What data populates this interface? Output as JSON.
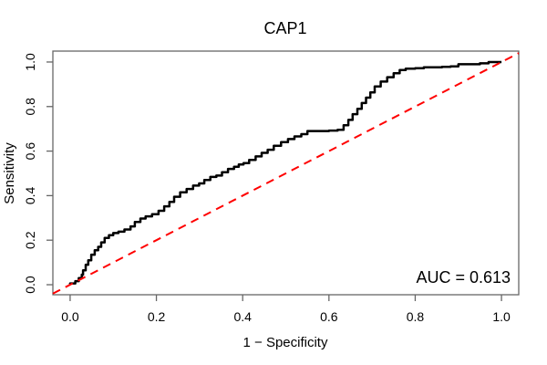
{
  "title": "CAP1",
  "annotation": {
    "auc_label": "AUC = 0.613"
  },
  "colors": {
    "curve": "#000000",
    "diagonal": "#ff0000",
    "box": "#666666",
    "text": "#000000"
  },
  "chart_data": {
    "type": "line",
    "subtype": "roc-step-curve",
    "title": "CAP1",
    "xlabel": "1 − Specificity",
    "ylabel": "Sensitivity",
    "xlim": [
      -0.04,
      1.04
    ],
    "ylim": [
      -0.045,
      1.049
    ],
    "grid": false,
    "legend": "none",
    "x_ticks": {
      "values": [
        0.0,
        0.2,
        0.4,
        0.6,
        0.8,
        1.0
      ],
      "labels": [
        "0.0",
        "0.2",
        "0.4",
        "0.6",
        "0.8",
        "1.0"
      ]
    },
    "y_ticks": {
      "values": [
        0.0,
        0.2,
        0.4,
        0.6,
        0.8,
        1.0
      ],
      "labels": [
        "0.0",
        "0.2",
        "0.4",
        "0.6",
        "0.8",
        "1.0"
      ]
    },
    "auc": 0.613,
    "series": [
      {
        "name": "ROC curve",
        "style": "step",
        "color": "#000000",
        "width": 2.5,
        "points": [
          [
            0.0,
            0.0
          ],
          [
            0.012,
            0.006
          ],
          [
            0.02,
            0.016
          ],
          [
            0.027,
            0.03
          ],
          [
            0.03,
            0.045
          ],
          [
            0.036,
            0.065
          ],
          [
            0.042,
            0.09
          ],
          [
            0.049,
            0.11
          ],
          [
            0.057,
            0.135
          ],
          [
            0.065,
            0.155
          ],
          [
            0.072,
            0.17
          ],
          [
            0.08,
            0.19
          ],
          [
            0.09,
            0.21
          ],
          [
            0.1,
            0.222
          ],
          [
            0.112,
            0.232
          ],
          [
            0.126,
            0.238
          ],
          [
            0.14,
            0.248
          ],
          [
            0.15,
            0.262
          ],
          [
            0.163,
            0.282
          ],
          [
            0.175,
            0.297
          ],
          [
            0.19,
            0.307
          ],
          [
            0.205,
            0.317
          ],
          [
            0.218,
            0.332
          ],
          [
            0.23,
            0.352
          ],
          [
            0.241,
            0.372
          ],
          [
            0.255,
            0.395
          ],
          [
            0.27,
            0.415
          ],
          [
            0.285,
            0.43
          ],
          [
            0.299,
            0.445
          ],
          [
            0.311,
            0.455
          ],
          [
            0.325,
            0.47
          ],
          [
            0.339,
            0.484
          ],
          [
            0.352,
            0.49
          ],
          [
            0.366,
            0.505
          ],
          [
            0.38,
            0.52
          ],
          [
            0.391,
            0.53
          ],
          [
            0.402,
            0.54
          ],
          [
            0.415,
            0.546
          ],
          [
            0.43,
            0.56
          ],
          [
            0.444,
            0.576
          ],
          [
            0.458,
            0.592
          ],
          [
            0.472,
            0.606
          ],
          [
            0.489,
            0.624
          ],
          [
            0.505,
            0.64
          ],
          [
            0.52,
            0.654
          ],
          [
            0.536,
            0.666
          ],
          [
            0.55,
            0.676
          ],
          [
            0.571,
            0.69
          ],
          [
            0.6,
            0.69
          ],
          [
            0.62,
            0.692
          ],
          [
            0.634,
            0.696
          ],
          [
            0.645,
            0.716
          ],
          [
            0.655,
            0.74
          ],
          [
            0.666,
            0.766
          ],
          [
            0.676,
            0.79
          ],
          [
            0.686,
            0.816
          ],
          [
            0.696,
            0.84
          ],
          [
            0.706,
            0.864
          ],
          [
            0.72,
            0.89
          ],
          [
            0.735,
            0.912
          ],
          [
            0.75,
            0.932
          ],
          [
            0.764,
            0.95
          ],
          [
            0.778,
            0.964
          ],
          [
            0.8,
            0.97
          ],
          [
            0.82,
            0.972
          ],
          [
            0.842,
            0.976
          ],
          [
            0.862,
            0.976
          ],
          [
            0.882,
            0.978
          ],
          [
            0.9,
            0.98
          ],
          [
            0.918,
            0.99
          ],
          [
            0.95,
            0.99
          ],
          [
            0.97,
            0.994
          ],
          [
            0.984,
            1.0
          ],
          [
            1.0,
            1.0
          ]
        ]
      },
      {
        "name": "chance diagonal",
        "style": "dashed",
        "color": "#ff0000",
        "width": 2,
        "dash": [
          9,
          6.5
        ],
        "points": [
          [
            -0.04,
            -0.04
          ],
          [
            1.04,
            1.04
          ]
        ]
      }
    ],
    "annotations": [
      {
        "text": "AUC = 0.613",
        "x": 1.02,
        "y": 0.008,
        "align": "end"
      }
    ]
  }
}
